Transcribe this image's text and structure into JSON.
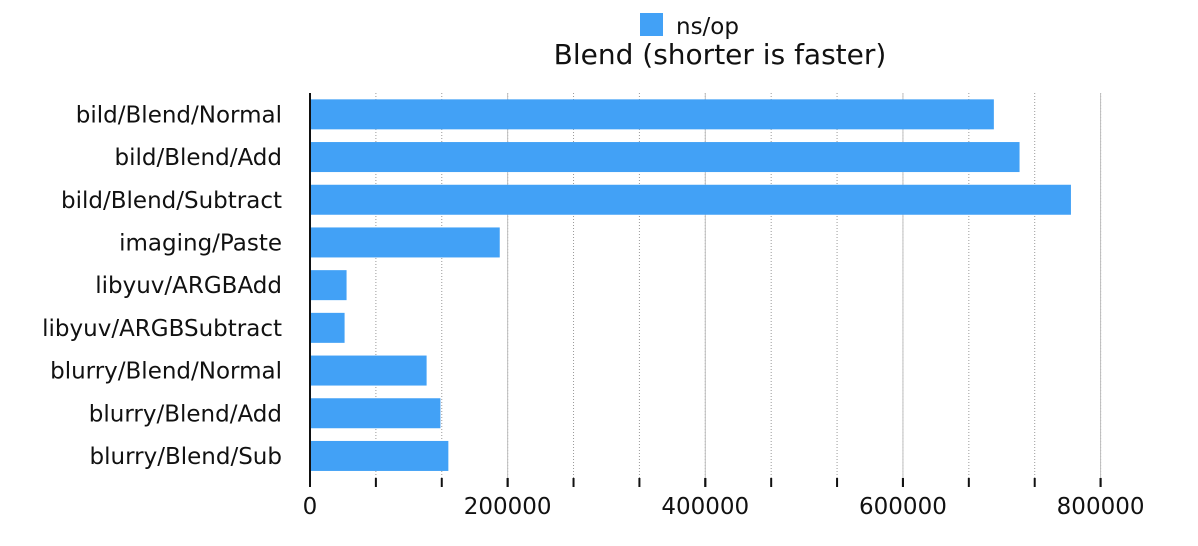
{
  "chart_data": {
    "type": "bar",
    "orientation": "horizontal",
    "title": "Blend (shorter is faster)",
    "legend": {
      "position": "top-center",
      "entries": [
        "ns/op"
      ]
    },
    "categories": [
      "bild/Blend/Normal",
      "bild/Blend/Add",
      "bild/Blend/Subtract",
      "imaging/Paste",
      "libyuv/ARGBAdd",
      "libyuv/ARGBSubtract",
      "blurry/Blend/Normal",
      "blurry/Blend/Add",
      "blurry/Blend/Sub"
    ],
    "series": [
      {
        "name": "ns/op",
        "color": "#42a1f6",
        "values": [
          692000,
          718000,
          770000,
          192000,
          37000,
          35000,
          118000,
          132000,
          140000
        ]
      }
    ],
    "xlim": [
      0,
      850000
    ],
    "xticks": [
      0,
      200000,
      400000,
      600000,
      800000
    ],
    "x_tick_labels": [
      "0",
      "200000",
      "400000",
      "600000",
      "800000"
    ],
    "minor_tick_step": 66667,
    "grid": true,
    "xlabel": "",
    "ylabel": ""
  }
}
